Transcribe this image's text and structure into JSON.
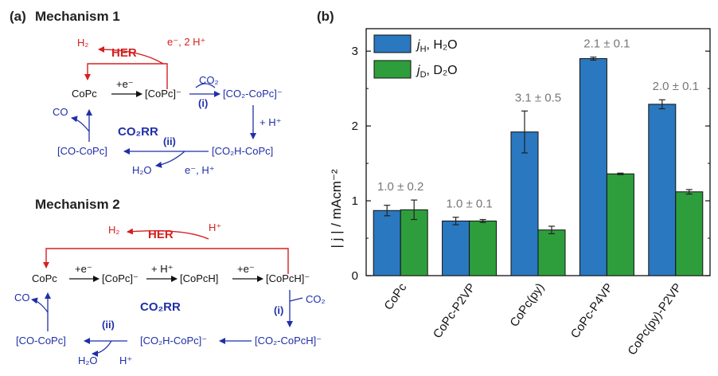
{
  "panel_a": {
    "label": "(a)",
    "mech1": {
      "title": "Mechanism 1",
      "h2": "H₂",
      "her": "HER",
      "e2h": "e⁻, 2 H⁺",
      "copc": "CoPc",
      "e_minus": "+e⁻",
      "copc_anion": "[CoPc]⁻",
      "co2": "CO₂",
      "step_i": "(i)",
      "co2_copc": "[CO₂-CoPc]⁻",
      "plus_h": "+ H⁺",
      "co": "CO",
      "co2rr": "CO₂RR",
      "step_ii": "(ii)",
      "co_copc": "[CO-CoPc]",
      "co2h_copc": "[CO₂H-CoPc]",
      "h2o": "H₂O",
      "eh": "e⁻, H⁺"
    },
    "mech2": {
      "title": "Mechanism 2",
      "h2": "H₂",
      "her": "HER",
      "hplus": "H⁺",
      "copc": "CoPc",
      "e_minus1": "+e⁻",
      "copc_anion": "[CoPc]⁻",
      "plus_h": "+ H⁺",
      "copch": "[CoPcH]",
      "e_minus2": "+e⁻",
      "copch_anion": "[CoPcH]⁻",
      "co": "CO",
      "co2rr": "CO₂RR",
      "step_i": "(i)",
      "co2": "CO₂",
      "step_ii": "(ii)",
      "co_copc": "[CO-CoPc]",
      "co2h_copc": "[CO₂H-CoPc]⁻",
      "co2_copch": "[CO₂-CoPcH]⁻",
      "h2o": "H₂O",
      "hplus2": "H⁺"
    }
  },
  "panel_b": {
    "label": "(b)"
  },
  "chart_data": {
    "type": "bar",
    "categories": [
      "CoPc",
      "CoPc-P2VP",
      "CoPc(py)",
      "CoPc-P4VP",
      "CoPc(py)-P2VP"
    ],
    "series": [
      {
        "name": "j_H, H₂O",
        "color": "#2a78bf",
        "values": [
          0.87,
          0.73,
          1.92,
          2.9,
          2.29
        ],
        "errors": [
          0.07,
          0.05,
          0.28,
          0.02,
          0.06
        ]
      },
      {
        "name": "j_D, D₂O",
        "color": "#2e9e3c",
        "values": [
          0.88,
          0.73,
          0.61,
          1.36,
          1.12
        ],
        "errors": [
          0.13,
          0.02,
          0.05,
          0.01,
          0.03
        ]
      }
    ],
    "annotations": [
      "1.0 ± 0.2",
      "1.0 ± 0.1",
      "3.1 ± 0.5",
      "2.1 ± 0.1",
      "2.0 ± 0.1"
    ],
    "ylim": [
      0,
      3.3
    ],
    "yticks": [
      "0",
      "1",
      "2",
      "3"
    ],
    "ylabel": "| j | / mAcm⁻²",
    "legend_position": "top-left",
    "legend": [
      {
        "sym": "j",
        "sub": "H",
        "rest": ", H₂O"
      },
      {
        "sym": "j",
        "sub": "D",
        "rest": ", D₂O"
      }
    ]
  }
}
